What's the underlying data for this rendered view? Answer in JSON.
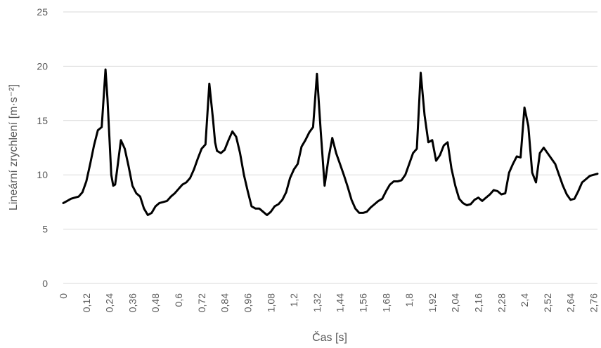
{
  "chart_data": {
    "type": "line",
    "title": "",
    "xlabel": "Čas [s]",
    "ylabel": "Lineární zrychlení [m·s⁻²]",
    "ylim": [
      0,
      25
    ],
    "yticks": [
      "0",
      "5",
      "10",
      "15",
      "20",
      "25"
    ],
    "xticks": [
      "0",
      "0,12",
      "0,24",
      "0,36",
      "0,48",
      "0,6",
      "0,72",
      "0,84",
      "0,96",
      "1,08",
      "1,2",
      "1,32",
      "1,44",
      "1,56",
      "1,68",
      "1,8",
      "1,92",
      "2,04",
      "2,16",
      "2,28",
      "2,4",
      "2,52",
      "2,64",
      "2,76"
    ],
    "xlim": [
      0,
      2.78
    ],
    "grid": "horizontal",
    "legend": "none",
    "colors": {
      "line": "#000000",
      "grid": "#d9d9d9",
      "text": "#595959"
    },
    "series": [
      {
        "x": [
          0,
          0.02,
          0.04,
          0.06,
          0.08,
          0.1,
          0.12,
          0.14,
          0.16,
          0.18,
          0.2,
          0.22,
          0.23,
          0.24,
          0.25,
          0.26,
          0.27,
          0.28,
          0.3,
          0.32,
          0.34,
          0.36,
          0.38,
          0.4,
          0.42,
          0.44,
          0.46,
          0.48,
          0.5,
          0.52,
          0.54,
          0.56,
          0.58,
          0.6,
          0.62,
          0.64,
          0.66,
          0.68,
          0.7,
          0.72,
          0.74,
          0.76,
          0.78,
          0.79,
          0.8,
          0.82,
          0.84,
          0.86,
          0.88,
          0.9,
          0.92,
          0.94,
          0.96,
          0.98,
          1.0,
          1.02,
          1.04,
          1.06,
          1.08,
          1.1,
          1.12,
          1.14,
          1.16,
          1.18,
          1.2,
          1.22,
          1.24,
          1.26,
          1.28,
          1.3,
          1.32,
          1.34,
          1.36,
          1.38,
          1.4,
          1.42,
          1.44,
          1.46,
          1.48,
          1.5,
          1.52,
          1.54,
          1.56,
          1.58,
          1.6,
          1.62,
          1.64,
          1.66,
          1.68,
          1.7,
          1.72,
          1.74,
          1.76,
          1.78,
          1.8,
          1.82,
          1.84,
          1.86,
          1.87,
          1.88,
          1.9,
          1.92,
          1.94,
          1.96,
          1.98,
          2.0,
          2.02,
          2.04,
          2.06,
          2.08,
          2.1,
          2.12,
          2.14,
          2.16,
          2.18,
          2.2,
          2.22,
          2.24,
          2.26,
          2.28,
          2.3,
          2.32,
          2.34,
          2.36,
          2.38,
          2.4,
          2.42,
          2.44,
          2.46,
          2.48,
          2.5,
          2.52,
          2.54,
          2.56,
          2.58,
          2.6,
          2.62,
          2.64,
          2.66,
          2.68,
          2.7,
          2.72,
          2.74,
          2.76,
          2.78
        ],
        "y": [
          7.4,
          7.6,
          7.8,
          7.9,
          8.0,
          8.4,
          9.4,
          11.0,
          12.7,
          14.1,
          14.4,
          19.7,
          17.0,
          13.5,
          10.0,
          9.0,
          9.1,
          10.4,
          13.2,
          12.4,
          10.8,
          9.0,
          8.3,
          8.0,
          6.9,
          6.3,
          6.5,
          7.1,
          7.4,
          7.5,
          7.6,
          8.0,
          8.3,
          8.7,
          9.1,
          9.3,
          9.7,
          10.5,
          11.5,
          12.4,
          12.8,
          18.4,
          15.0,
          13.0,
          12.2,
          12.0,
          12.3,
          13.2,
          14.0,
          13.5,
          12.0,
          10.0,
          8.5,
          7.1,
          6.9,
          6.9,
          6.6,
          6.3,
          6.6,
          7.1,
          7.3,
          7.7,
          8.4,
          9.7,
          10.5,
          11.0,
          12.6,
          13.2,
          13.9,
          14.4,
          19.3,
          14.0,
          9.0,
          11.5,
          13.4,
          12.0,
          11.0,
          10.0,
          8.9,
          7.7,
          6.9,
          6.5,
          6.5,
          6.6,
          7.0,
          7.3,
          7.6,
          7.8,
          8.5,
          9.1,
          9.4,
          9.4,
          9.5,
          10.0,
          11.0,
          12.0,
          12.4,
          19.4,
          17.5,
          15.5,
          13.0,
          13.2,
          11.3,
          11.8,
          12.7,
          13.0,
          10.6,
          9.0,
          7.8,
          7.4,
          7.2,
          7.3,
          7.7,
          7.9,
          7.6,
          7.9,
          8.2,
          8.6,
          8.5,
          8.2,
          8.3,
          10.2,
          11.0,
          11.7,
          11.6,
          16.2,
          14.5,
          10.2,
          9.3,
          12.0,
          12.5,
          12.0,
          11.5,
          11.0,
          10.0,
          9.0,
          8.2,
          7.7,
          7.8,
          8.5,
          9.3,
          9.6,
          9.9,
          10.0,
          10.1
        ]
      }
    ]
  }
}
